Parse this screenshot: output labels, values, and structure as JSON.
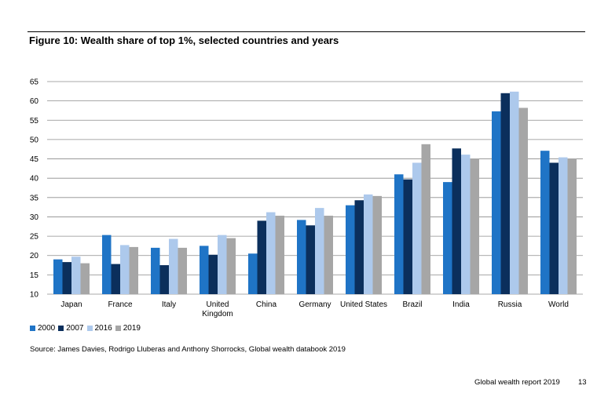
{
  "figure_title": "Figure 10: Wealth share of top 1%, selected countries and years",
  "source": "Source: James Davies, Rodrigo Lluberas and Anthony Shorrocks, Global wealth databook 2019",
  "footer": {
    "report": "Global wealth report 2019",
    "page": "13"
  },
  "chart_data": {
    "type": "bar",
    "title": "Figure 10: Wealth share of top 1%, selected countries and years",
    "xlabel": "",
    "ylabel": "",
    "ylim": [
      10,
      65
    ],
    "yticks": [
      "10",
      "15",
      "20",
      "25",
      "30",
      "35",
      "40",
      "45",
      "50",
      "55",
      "60",
      "65"
    ],
    "grid": true,
    "legend_position": "bottom-left",
    "categories": [
      [
        "Japan"
      ],
      [
        "France"
      ],
      [
        "Italy"
      ],
      [
        "United",
        "Kingdom"
      ],
      [
        "China"
      ],
      [
        "Germany"
      ],
      [
        "United States"
      ],
      [
        "Brazil"
      ],
      [
        "India"
      ],
      [
        "Russia"
      ],
      [
        "World"
      ]
    ],
    "series": [
      {
        "name": "2000",
        "color": "#1f74c6",
        "values": [
          19.0,
          25.3,
          22.0,
          22.5,
          20.5,
          29.2,
          33.0,
          41.0,
          39.0,
          57.3,
          47.1
        ]
      },
      {
        "name": "2007",
        "color": "#0b2f5c",
        "values": [
          18.3,
          17.8,
          17.5,
          20.2,
          29.0,
          27.8,
          34.3,
          39.7,
          47.7,
          62.0,
          44.0
        ]
      },
      {
        "name": "2016",
        "color": "#adc9ec",
        "values": [
          19.7,
          22.7,
          24.3,
          25.3,
          31.2,
          32.3,
          35.8,
          44.0,
          46.1,
          62.4,
          45.4
        ]
      },
      {
        "name": "2019",
        "color": "#a6a6a6",
        "values": [
          18.0,
          22.2,
          22.0,
          24.5,
          30.3,
          30.3,
          35.4,
          48.8,
          45.0,
          58.2,
          45.0
        ]
      }
    ]
  }
}
